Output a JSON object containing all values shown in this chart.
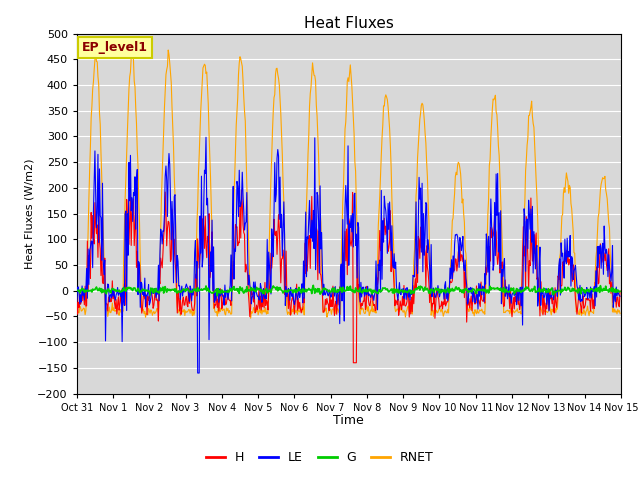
{
  "title": "Heat Fluxes",
  "ylabel": "Heat Fluxes (W/m2)",
  "xlabel": "Time",
  "annotation": "EP_level1",
  "ylim": [
    -200,
    500
  ],
  "yticks": [
    -200,
    -150,
    -100,
    -50,
    0,
    50,
    100,
    150,
    200,
    250,
    300,
    350,
    400,
    450,
    500
  ],
  "colors": {
    "H": "#ff0000",
    "LE": "#0000ff",
    "G": "#00cc00",
    "RNET": "#ffa500"
  },
  "background_color": "#d8d8d8",
  "grid_color": "#ffffff",
  "line_width": 0.8,
  "xtick_labels": [
    "Oct 31",
    "Nov 1",
    "Nov 2",
    "Nov 3",
    "Nov 4",
    "Nov 5",
    "Nov 6",
    "Nov 7",
    "Nov 8",
    "Nov 9",
    "Nov 10",
    "Nov 11",
    "Nov 12",
    "Nov 13",
    "Nov 14",
    "Nov 15"
  ],
  "n_days": 15,
  "pts_per_day": 48,
  "rnet_day_peaks": [
    460,
    450,
    455,
    445,
    450,
    435,
    430,
    430,
    385,
    360,
    245,
    370,
    360,
    220,
    220
  ],
  "rnet_night_level": -40,
  "figsize": [
    6.4,
    4.8
  ],
  "dpi": 100
}
